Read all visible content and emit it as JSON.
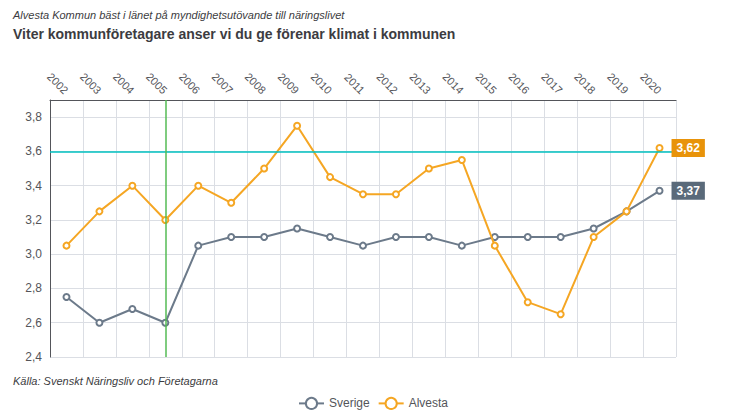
{
  "chart_data": {
    "type": "line",
    "title": "Alvesta Kommun bäst i länet på myndighetsutövande till näringslivet",
    "subtitle": "Viter kommunföretagare anser vi du ge förenar klimat i kommunen",
    "source": "Källa: Svenskt Näringsliv och Företagarna",
    "categories": [
      "2002",
      "2003",
      "2004",
      "2005",
      "2006",
      "2007",
      "2008",
      "2009",
      "2010",
      "2011",
      "2012",
      "2013",
      "2014",
      "2015",
      "2016",
      "2017",
      "2018",
      "2019",
      "2020"
    ],
    "series": [
      {
        "name": "Sverige",
        "color": "#6C7A8A",
        "values": [
          2.75,
          2.6,
          2.68,
          2.6,
          3.05,
          3.1,
          3.1,
          3.15,
          3.1,
          3.05,
          3.1,
          3.1,
          3.05,
          3.1,
          3.1,
          3.1,
          3.15,
          3.25,
          3.37
        ]
      },
      {
        "name": "Alvesta",
        "color": "#F5A623",
        "values": [
          3.05,
          3.25,
          3.4,
          3.2,
          3.4,
          3.3,
          3.5,
          3.75,
          3.45,
          3.35,
          3.35,
          3.5,
          3.55,
          3.05,
          2.72,
          2.65,
          3.1,
          3.25,
          3.62
        ]
      }
    ],
    "ylim": [
      2.4,
      3.9
    ],
    "yticks": [
      {
        "value": 2.4,
        "label": "2,4"
      },
      {
        "value": 2.6,
        "label": "2,6"
      },
      {
        "value": 2.8,
        "label": "2,8"
      },
      {
        "value": 3.0,
        "label": "3,0"
      },
      {
        "value": 3.2,
        "label": "3,2"
      },
      {
        "value": 3.4,
        "label": "3,4"
      },
      {
        "value": 3.6,
        "label": "3,6"
      },
      {
        "value": 3.8,
        "label": "3,8"
      }
    ],
    "grid": true,
    "legend": "bottom",
    "annotations": [
      {
        "series": "Alvesta",
        "x": "2020",
        "y": 3.62,
        "text": "3,62",
        "color": "#E8930A"
      },
      {
        "series": "Sverige",
        "x": "2020",
        "y": 3.37,
        "text": "3,37",
        "color": "#5A6A7A"
      }
    ],
    "reference_lines": [
      {
        "axis": "y",
        "value": 3.6,
        "color": "#00C0C0"
      },
      {
        "axis": "x",
        "value": "2005",
        "color": "#55BB55"
      }
    ]
  }
}
